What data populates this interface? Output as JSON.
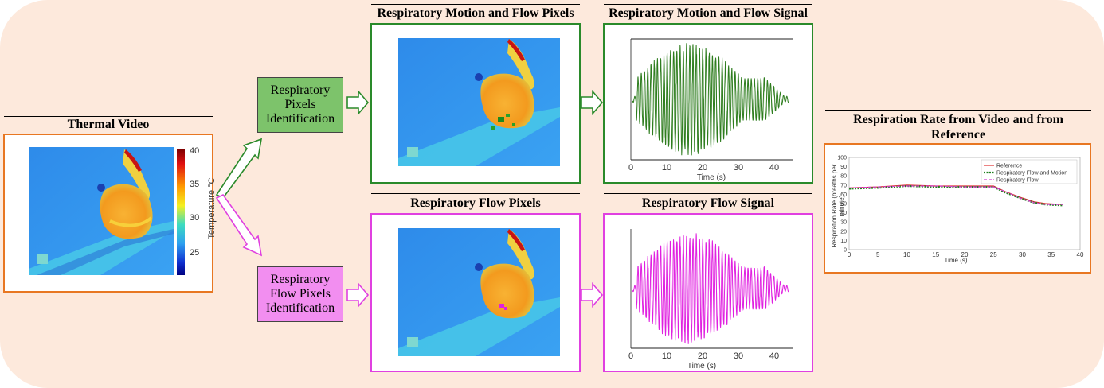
{
  "thermal_video": {
    "title": "Thermal Video",
    "colorbar_label": "Temperature °C",
    "colorbar_ticks": [
      "40",
      "35",
      "30",
      "25"
    ]
  },
  "identification": {
    "motion_flow_label_lines": [
      "Respiratory",
      "Pixels",
      "Identification"
    ],
    "flow_label_lines": [
      "Respiratory",
      "Flow Pixels",
      "Identification"
    ]
  },
  "panels": {
    "motion_flow_pixels_title": "Respiratory Motion and Flow Pixels",
    "flow_pixels_title": "Respiratory Flow Pixels",
    "motion_flow_signal_title": "Respiratory Motion and Flow Signal",
    "flow_signal_title": "Respiratory Flow Signal"
  },
  "colors": {
    "background": "#fde9dc",
    "orange_border": "#e87722",
    "green_border": "#2a8a2a",
    "magenta_border": "#e040e0",
    "green_box": "#7dc36b",
    "magenta_box": "#f28ef0",
    "green_signal": "#2e7d1e",
    "magenta_signal": "#e020e0"
  },
  "chart_data": [
    {
      "type": "line",
      "title": "Respiratory Motion and Flow Signal",
      "xlabel": "Time (s)",
      "x_ticks": [
        "0",
        "10",
        "20",
        "30",
        "40"
      ],
      "xlim": [
        0,
        45
      ],
      "signal_active_range": [
        1.5,
        43
      ],
      "approx_breath_period_s": 0.9,
      "color": "#2e7d1e"
    },
    {
      "type": "line",
      "title": "Respiratory Flow Signal",
      "xlabel": "Time (s)",
      "x_ticks": [
        "0",
        "10",
        "20",
        "30",
        "40"
      ],
      "xlim": [
        0,
        45
      ],
      "signal_active_range": [
        1.5,
        43
      ],
      "approx_breath_period_s": 0.9,
      "color": "#e020e0"
    },
    {
      "type": "line",
      "title": "Respiration Rate from Video and from Reference",
      "xlabel": "Time (s)",
      "ylabel": "Respiration Rate (breaths per minute)",
      "xlim": [
        0,
        40
      ],
      "ylim": [
        0,
        100
      ],
      "x_ticks": [
        "0",
        "5",
        "10",
        "15",
        "20",
        "25",
        "30",
        "35",
        "40"
      ],
      "y_ticks": [
        "0",
        "10",
        "20",
        "30",
        "40",
        "50",
        "60",
        "70",
        "80",
        "90",
        "100"
      ],
      "legend_location": "top-right",
      "x": [
        0,
        5,
        10,
        15,
        20,
        25,
        27,
        30,
        32,
        34,
        37
      ],
      "series": [
        {
          "name": "Reference",
          "color": "#e03030",
          "style": "solid",
          "values": [
            67,
            68,
            70,
            69,
            69,
            69,
            63,
            56,
            52,
            50,
            49
          ]
        },
        {
          "name": "Respiratory Flow and Motion",
          "color": "#208020",
          "style": "dotted",
          "values": [
            66,
            67,
            69,
            68,
            68,
            68,
            62,
            55,
            51,
            49,
            48
          ]
        },
        {
          "name": "Respiratory Flow",
          "color": "#d040d0",
          "style": "dashed",
          "values": [
            67,
            68,
            69,
            69,
            68,
            68,
            63,
            55,
            51,
            49,
            49
          ]
        }
      ]
    }
  ]
}
